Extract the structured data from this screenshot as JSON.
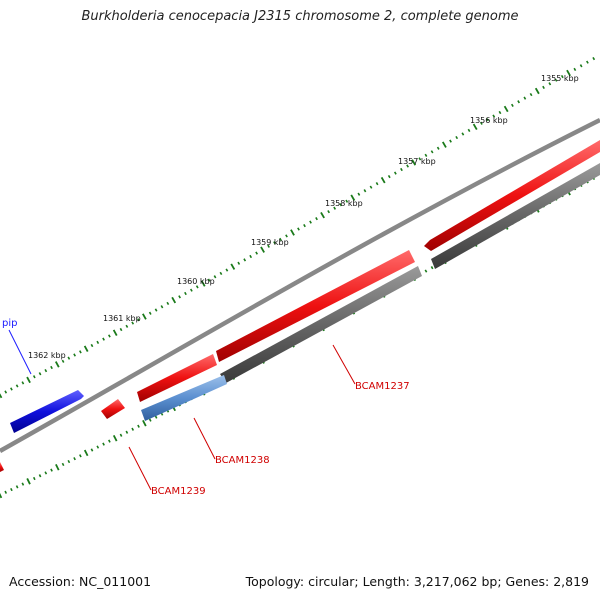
{
  "title": "Burkholderia cenocepacia J2315 chromosome 2, complete genome",
  "footer": {
    "accession": "Accession: NC_011001",
    "summary": "Topology: circular; Length: 3,217,062 bp; Genes: 2,819"
  },
  "ticks": [
    {
      "label": "1355 kbp"
    },
    {
      "label": "1356 kbp"
    },
    {
      "label": "1357 kbp"
    },
    {
      "label": "1358 kbp"
    },
    {
      "label": "1359 kbp"
    },
    {
      "label": "1360 kbp"
    },
    {
      "label": "1361 kbp"
    },
    {
      "label": "1362 kbp"
    }
  ],
  "gene_labels": [
    {
      "label": "BCAM1237",
      "color": "#d00000"
    },
    {
      "label": "BCAM1238",
      "color": "#d00000"
    },
    {
      "label": "BCAM1239",
      "color": "#d00000"
    },
    {
      "label": "pip",
      "color": "#1a1aff"
    }
  ],
  "colors": {
    "forward_gene": "#ee1111",
    "reverse_gene": "#1010dd",
    "cds_feature": "#666666",
    "highlight_feature": "#5b8fd0",
    "backbone": "#888888",
    "tick": "#1a7a1a"
  }
}
